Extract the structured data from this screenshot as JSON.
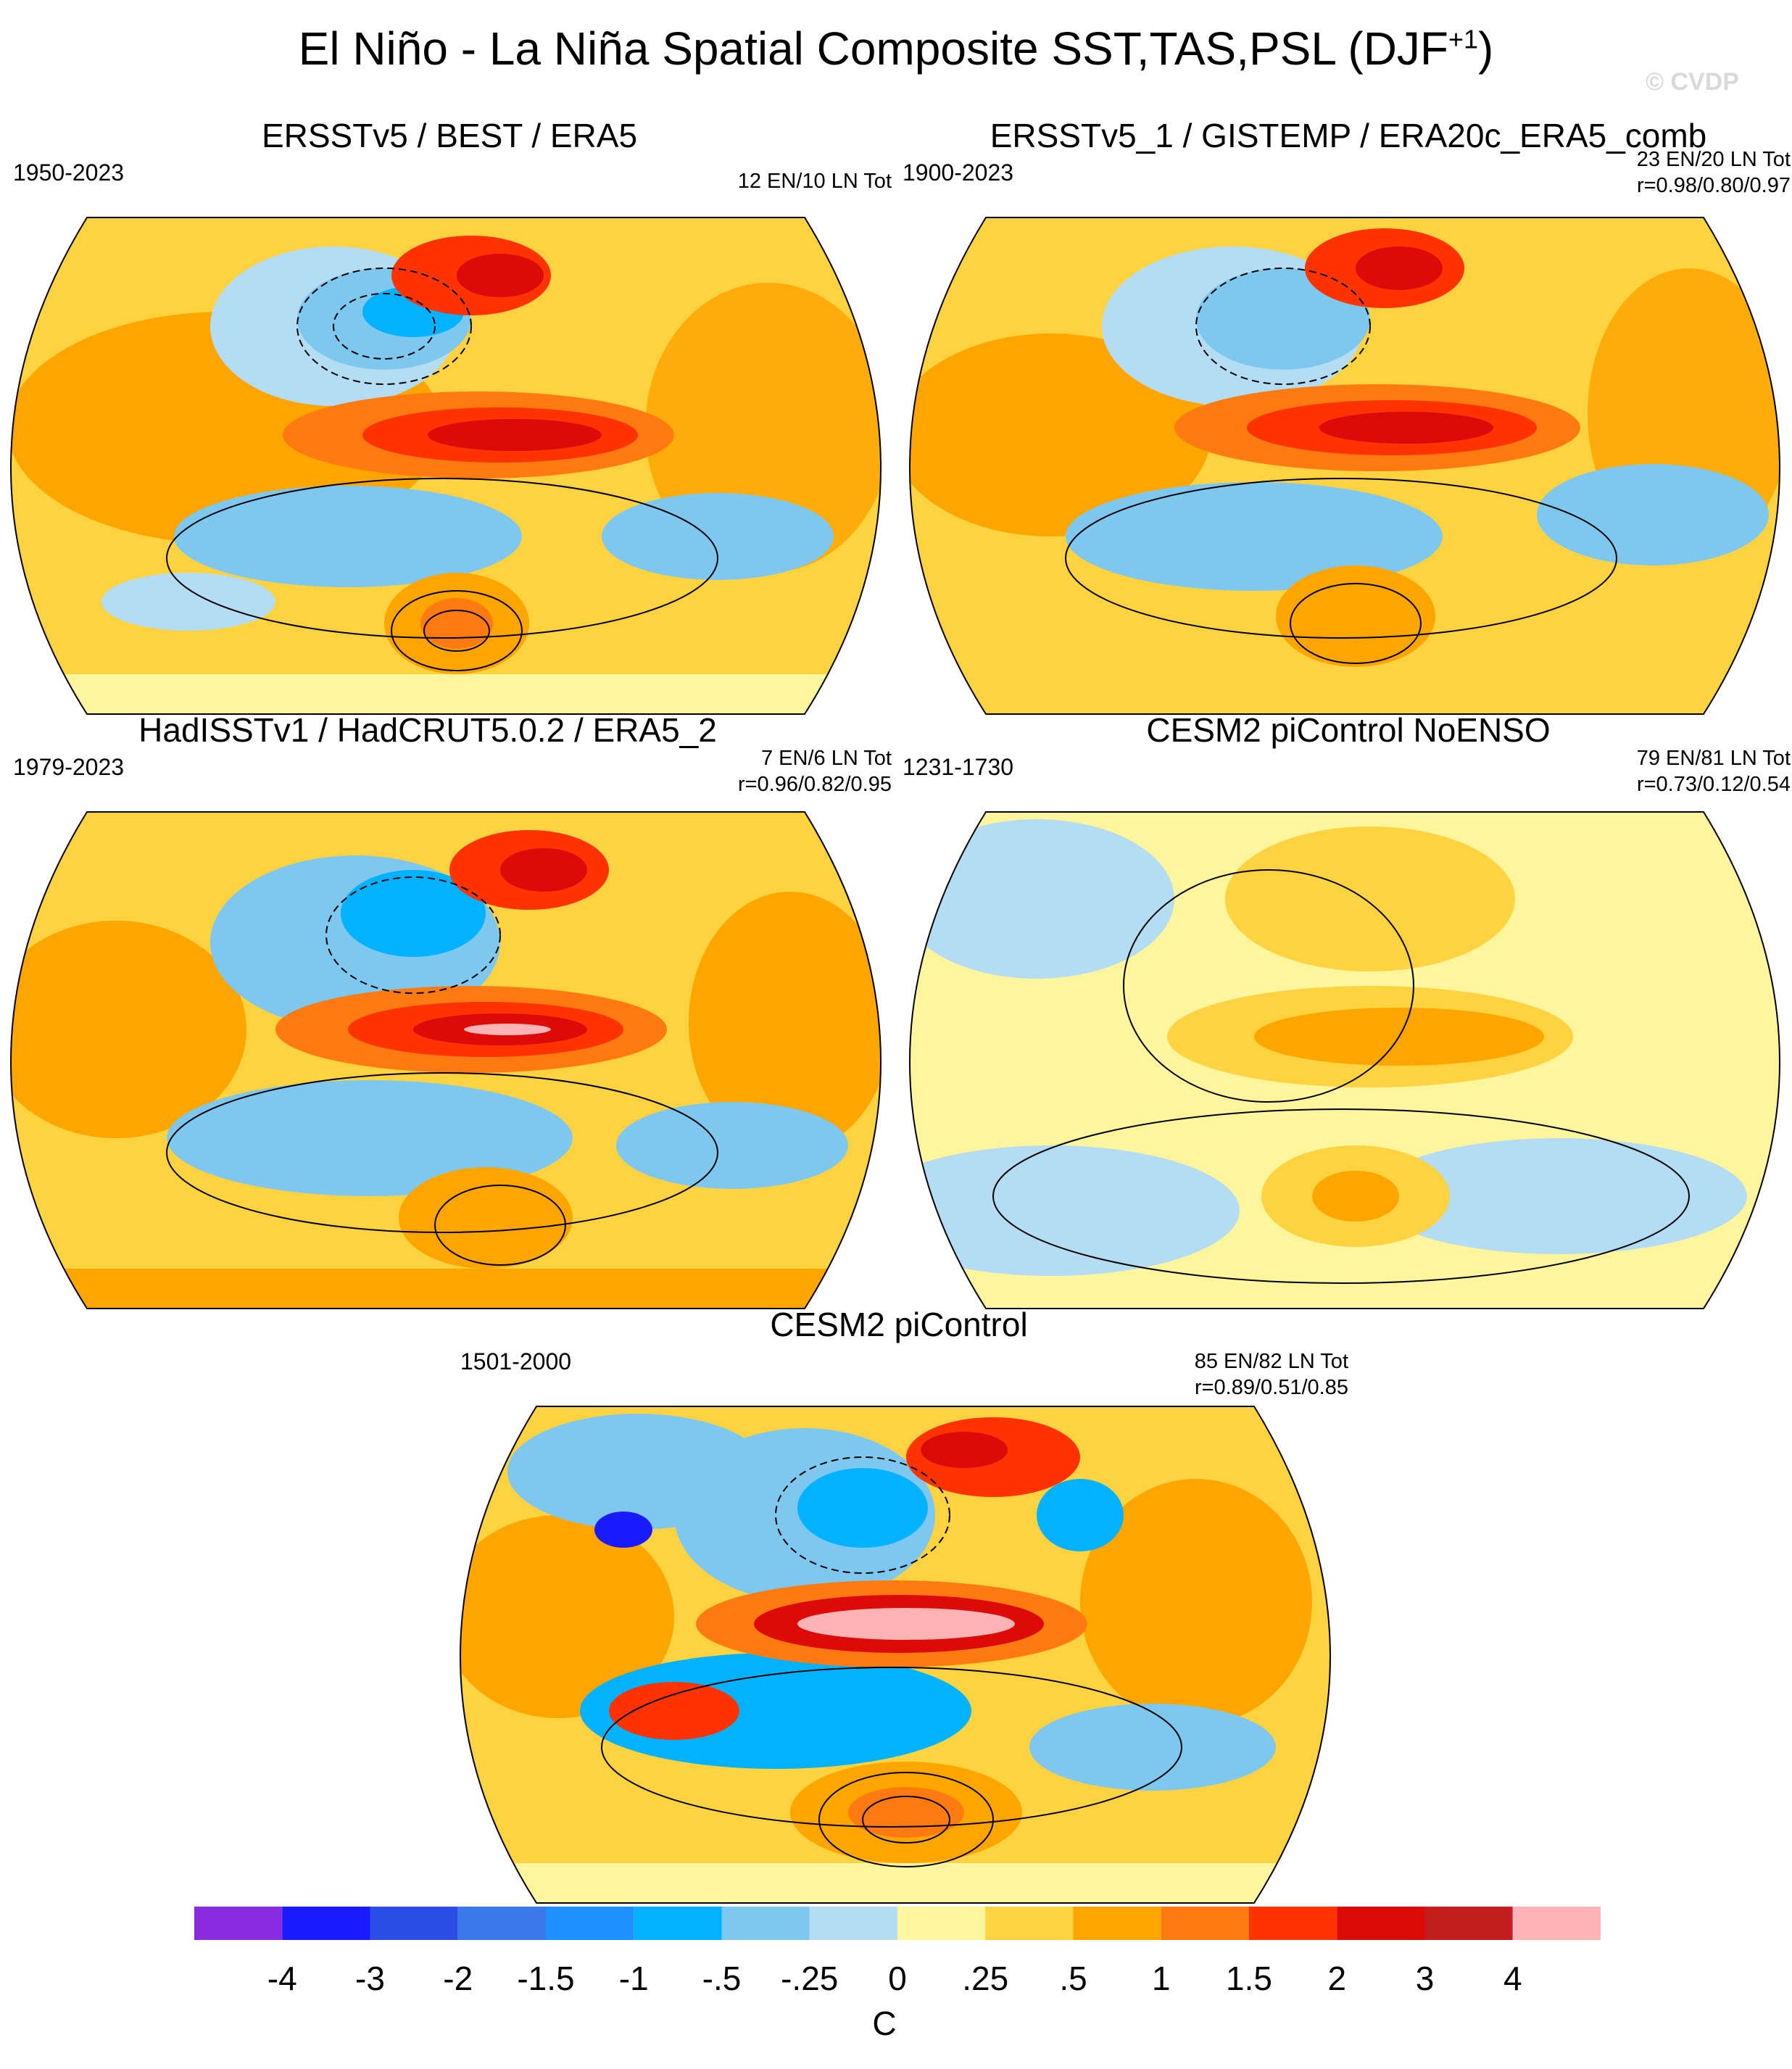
{
  "title": "El Niño - La Niña Spatial Composite SST,TAS,PSL (DJF",
  "title_sup": "+1",
  "title_close": ")",
  "watermark": "© CVDP",
  "panels": [
    {
      "title": "ERSSTv5 / BEST / ERA5",
      "period": "1950-2023",
      "counts": "12 EN/10 LN Tot",
      "corr": ""
    },
    {
      "title": "ERSSTv5_1 / GISTEMP / ERA20c_ERA5_comb",
      "period": "1900-2023",
      "counts": "23 EN/20 LN Tot",
      "corr": "r=0.98/0.80/0.97"
    },
    {
      "title": "HadISSTv1 / HadCRUT5.0.2 / ERA5_2",
      "period": "1979-2023",
      "counts": "7 EN/6 LN Tot",
      "corr": "r=0.96/0.82/0.95"
    },
    {
      "title": "CESM2 piControl NoENSO",
      "period": "1231-1730",
      "counts": "79 EN/81 LN Tot",
      "corr": "r=0.73/0.12/0.54"
    },
    {
      "title": "CESM2 piControl",
      "period": "1501-2000",
      "counts": "85 EN/82 LN Tot",
      "corr": "r=0.89/0.51/0.85"
    }
  ],
  "chart_data": {
    "type": "heatmap",
    "projection": "Robinson (Pacific-centered)",
    "variables": [
      "SST",
      "TAS",
      "PSL"
    ],
    "season": "DJF+1",
    "colorbar": {
      "units": "C",
      "levels": [
        -4,
        -3,
        -2,
        -1.5,
        -1,
        -0.5,
        -0.25,
        0,
        0.25,
        0.5,
        1,
        1.5,
        2,
        3,
        4
      ],
      "tick_labels": [
        "-4",
        "-3",
        "-2",
        "-1.5",
        "-1",
        "-.5",
        "-.25",
        "0",
        ".25",
        ".5",
        "1",
        "1.5",
        "2",
        "3",
        "4"
      ],
      "colors": [
        "#8a2be2",
        "#1a1aff",
        "#2b4de6",
        "#3b78e8",
        "#1e90ff",
        "#00b2ff",
        "#7ec8f0",
        "#b4dcf2",
        "#fff59d",
        "#ffd23f",
        "#ffa500",
        "#ff7a10",
        "#ff3300",
        "#dd0a0a",
        "#c41e1e",
        "#ffb3b3"
      ]
    }
  }
}
